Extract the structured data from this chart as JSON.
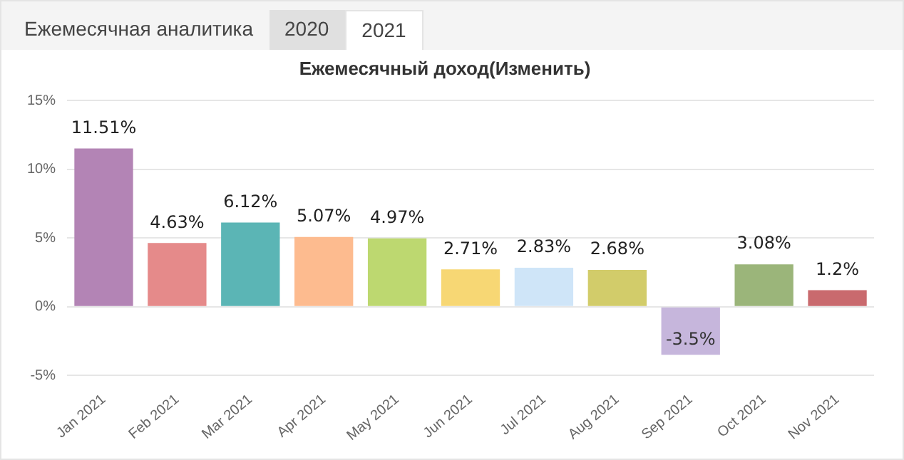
{
  "chart_data": {
    "type": "bar",
    "title": "Ежемесячный доход(Изменить)",
    "annotations": [
      "Ежемесячная аналитика",
      "2020",
      "2021"
    ],
    "categories": [
      "Jan 2021",
      "Feb 2021",
      "Mar 2021",
      "Apr 2021",
      "May 2021",
      "Jun 2021",
      "Jul 2021",
      "Aug 2021",
      "Sep 2021",
      "Oct 2021",
      "Nov 2021"
    ],
    "values": [
      11.51,
      4.63,
      6.12,
      5.07,
      4.97,
      2.71,
      2.83,
      2.68,
      -3.5,
      3.08,
      1.2
    ],
    "value_labels": [
      "11.51%",
      "4.63%",
      "6.12%",
      "5.07%",
      "4.97%",
      "2.71%",
      "2.83%",
      "2.68%",
      "-3.5%",
      "3.08%",
      "1.2%"
    ],
    "colors": [
      "#b384b5",
      "#e58a8a",
      "#5bb5b5",
      "#fdbb8f",
      "#bdd870",
      "#f7d774",
      "#cfe5f8",
      "#d2cc6a",
      "#c6b6dc",
      "#9bb57a",
      "#c96a6e"
    ],
    "ylim": [
      -5,
      15
    ],
    "yticks": [
      {
        "value": -5,
        "label": "-5%"
      },
      {
        "value": 0,
        "label": "0%"
      },
      {
        "value": 5,
        "label": "5%"
      },
      {
        "value": 10,
        "label": "10%"
      },
      {
        "value": 15,
        "label": "15%"
      }
    ],
    "grid": "y",
    "legend": false
  }
}
